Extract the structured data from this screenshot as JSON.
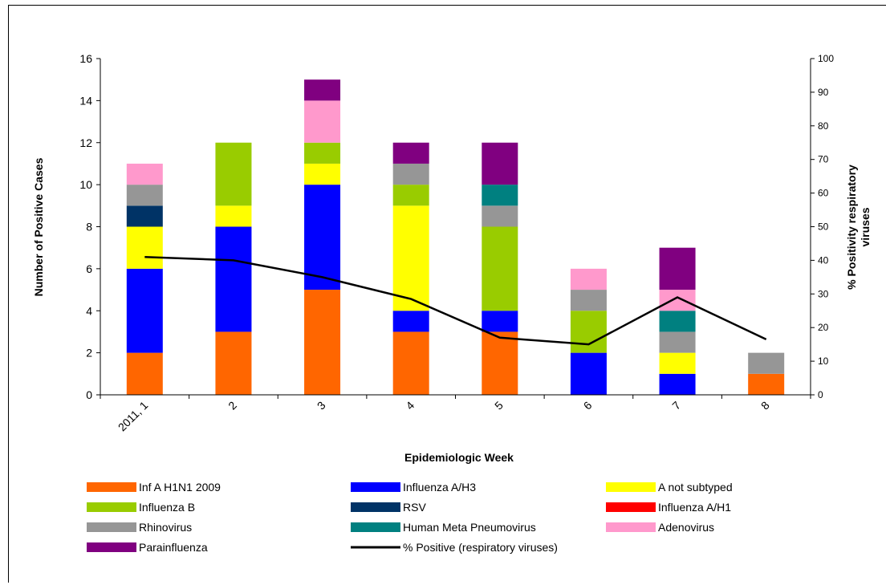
{
  "chart_data": {
    "type": "bar",
    "xlabel": "Epidemiologic Week",
    "ylabel": "Number of Positive Cases",
    "y2label_line1": "% Positivity respiratory",
    "y2label_line2": "viruses",
    "categories": [
      "2011, 1",
      "2",
      "3",
      "4",
      "5",
      "6",
      "7",
      "8"
    ],
    "ylim": [
      0,
      16
    ],
    "yticks": [
      "0",
      "2",
      "4",
      "6",
      "8",
      "10",
      "12",
      "14",
      "16"
    ],
    "y2lim": [
      0,
      100
    ],
    "y2ticks": [
      "0",
      "10",
      "20",
      "30",
      "40",
      "50",
      "60",
      "70",
      "80",
      "90",
      "100"
    ],
    "grid": false,
    "legend_position": "bottom",
    "series": [
      {
        "name": "Inf A H1N1 2009",
        "color": "#FF6600",
        "values": [
          2,
          3,
          5,
          3,
          3,
          0,
          0,
          1
        ]
      },
      {
        "name": "Influenza A/H3",
        "color": "#0000FF",
        "values": [
          4,
          5,
          5,
          1,
          1,
          2,
          1,
          0
        ]
      },
      {
        "name": "A not subtyped",
        "color": "#FFFF00",
        "values": [
          2,
          1,
          1,
          5,
          0,
          0,
          1,
          0
        ]
      },
      {
        "name": "Influenza B",
        "color": "#99CC00",
        "values": [
          0,
          3,
          1,
          1,
          4,
          2,
          0,
          0
        ]
      },
      {
        "name": "RSV",
        "color": "#003366",
        "values": [
          1,
          0,
          0,
          0,
          0,
          0,
          0,
          0
        ]
      },
      {
        "name": "Influenza A/H1",
        "color": "#FF0000",
        "values": [
          0,
          0,
          0,
          0,
          0,
          0,
          0,
          0
        ]
      },
      {
        "name": "Rhinovirus",
        "color": "#969696",
        "values": [
          1,
          0,
          0,
          1,
          1,
          1,
          1,
          1
        ]
      },
      {
        "name": "Human Meta Pneumovirus",
        "color": "#008080",
        "values": [
          0,
          0,
          0,
          0,
          1,
          0,
          1,
          0
        ]
      },
      {
        "name": "Adenovirus",
        "color": "#FF99CC",
        "values": [
          1,
          0,
          2,
          0,
          0,
          1,
          1,
          0
        ]
      },
      {
        "name": "Parainfluenza",
        "color": "#800080",
        "values": [
          0,
          0,
          1,
          1,
          2,
          0,
          2,
          0
        ]
      }
    ],
    "line": {
      "name": "% Positive (respiratory viruses)",
      "color": "#000000",
      "values": [
        41,
        40,
        35,
        28.5,
        17,
        15,
        29,
        16.5
      ]
    }
  }
}
